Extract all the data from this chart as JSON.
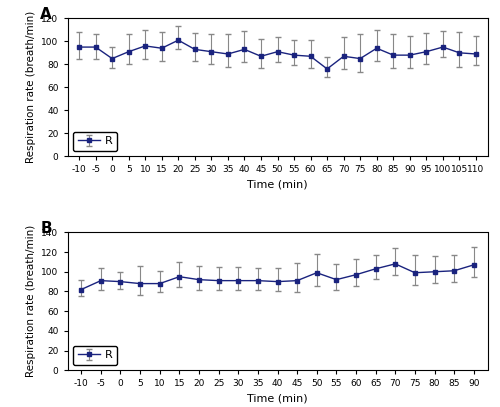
{
  "panel_A": {
    "label": "A",
    "x": [
      -10,
      -5,
      0,
      5,
      10,
      15,
      20,
      25,
      30,
      35,
      40,
      45,
      50,
      55,
      60,
      65,
      70,
      75,
      80,
      85,
      90,
      95,
      100,
      105,
      110
    ],
    "y": [
      95,
      95,
      85,
      91,
      96,
      94,
      101,
      93,
      91,
      89,
      93,
      87,
      91,
      88,
      87,
      76,
      87,
      85,
      94,
      88,
      88,
      91,
      95,
      90,
      89
    ],
    "yerr_upper": [
      13,
      11,
      10,
      15,
      14,
      14,
      12,
      14,
      15,
      17,
      16,
      15,
      13,
      13,
      14,
      10,
      17,
      21,
      16,
      18,
      17,
      16,
      14,
      18,
      16
    ],
    "yerr_lower": [
      10,
      10,
      8,
      11,
      11,
      11,
      8,
      10,
      11,
      11,
      11,
      10,
      9,
      9,
      10,
      7,
      11,
      12,
      11,
      11,
      11,
      11,
      9,
      12,
      10
    ],
    "ylabel": "Respiration rate (breath/min)",
    "xlabel": "Time (min)",
    "ylim": [
      0,
      120
    ],
    "yticks": [
      0,
      20,
      40,
      60,
      80,
      100,
      120
    ],
    "legend_label": "R",
    "panel_label": "A"
  },
  "panel_B": {
    "label": "B",
    "x": [
      -10,
      -5,
      0,
      5,
      10,
      15,
      20,
      25,
      30,
      35,
      40,
      45,
      50,
      55,
      60,
      65,
      70,
      75,
      80,
      85,
      90
    ],
    "y": [
      82,
      91,
      90,
      88,
      88,
      95,
      92,
      91,
      91,
      91,
      90,
      91,
      99,
      92,
      97,
      103,
      108,
      99,
      100,
      101,
      107
    ],
    "yerr_upper": [
      10,
      13,
      10,
      18,
      13,
      15,
      14,
      14,
      14,
      13,
      14,
      18,
      19,
      16,
      16,
      14,
      16,
      18,
      16,
      16,
      18
    ],
    "yerr_lower": [
      7,
      9,
      7,
      12,
      9,
      10,
      10,
      10,
      10,
      9,
      10,
      12,
      13,
      11,
      11,
      10,
      11,
      12,
      11,
      11,
      12
    ],
    "ylabel": "Respiration rate (breath/min)",
    "xlabel": "Time (min)",
    "ylim": [
      0,
      140
    ],
    "yticks": [
      0,
      20,
      40,
      60,
      80,
      100,
      120,
      140
    ],
    "legend_label": "R",
    "panel_label": "B"
  },
  "line_color": "#1a237e",
  "marker": "s",
  "markersize": 3.5,
  "linewidth": 1.0,
  "capsize": 2.5,
  "ecolor": "#888888",
  "elinewidth": 0.8,
  "legend_fontsize": 8,
  "axis_fontsize": 7.5,
  "tick_fontsize": 6.5,
  "xlabel_fontsize": 8,
  "panel_label_fontsize": 11
}
